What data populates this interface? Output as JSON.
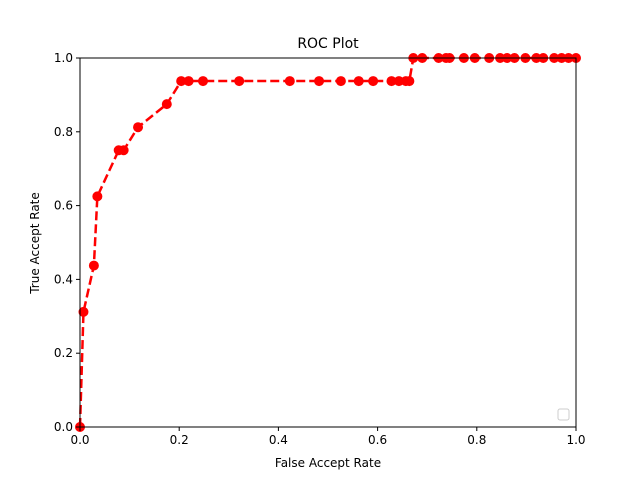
{
  "chart_data": {
    "type": "line",
    "title": "ROC Plot",
    "xlabel": "False Accept Rate",
    "ylabel": "True Accept Rate",
    "xlim": [
      0,
      1
    ],
    "ylim": [
      0,
      1
    ],
    "xticks": [
      "0.0",
      "0.2",
      "0.4",
      "0.6",
      "0.8",
      "1.0"
    ],
    "yticks": [
      "0.0",
      "0.2",
      "0.4",
      "0.6",
      "0.8",
      "1.0"
    ],
    "grid": false,
    "legend": "lower-right",
    "series": [
      {
        "color": "#ff0000",
        "line_style": "dashed",
        "marker": "circle",
        "points": [
          [
            0.0,
            0.0
          ],
          [
            0.007,
            0.312
          ],
          [
            0.028,
            0.4375
          ],
          [
            0.035,
            0.625
          ],
          [
            0.078,
            0.75
          ],
          [
            0.088,
            0.75
          ],
          [
            0.117,
            0.8125
          ],
          [
            0.175,
            0.875
          ],
          [
            0.204,
            0.9375
          ],
          [
            0.219,
            0.9375
          ],
          [
            0.248,
            0.9375
          ],
          [
            0.321,
            0.9375
          ],
          [
            0.423,
            0.9375
          ],
          [
            0.482,
            0.9375
          ],
          [
            0.526,
            0.9375
          ],
          [
            0.562,
            0.9375
          ],
          [
            0.591,
            0.9375
          ],
          [
            0.628,
            0.9375
          ],
          [
            0.643,
            0.9375
          ],
          [
            0.657,
            0.9375
          ],
          [
            0.664,
            0.9375
          ],
          [
            0.672,
            1.0
          ],
          [
            0.69,
            1.0
          ],
          [
            0.723,
            1.0
          ],
          [
            0.738,
            1.0
          ],
          [
            0.745,
            1.0
          ],
          [
            0.774,
            1.0
          ],
          [
            0.796,
            1.0
          ],
          [
            0.825,
            1.0
          ],
          [
            0.847,
            1.0
          ],
          [
            0.861,
            1.0
          ],
          [
            0.876,
            1.0
          ],
          [
            0.898,
            1.0
          ],
          [
            0.92,
            1.0
          ],
          [
            0.934,
            1.0
          ],
          [
            0.956,
            1.0
          ],
          [
            0.971,
            1.0
          ],
          [
            0.985,
            1.0
          ],
          [
            1.0,
            1.0
          ]
        ]
      }
    ]
  }
}
